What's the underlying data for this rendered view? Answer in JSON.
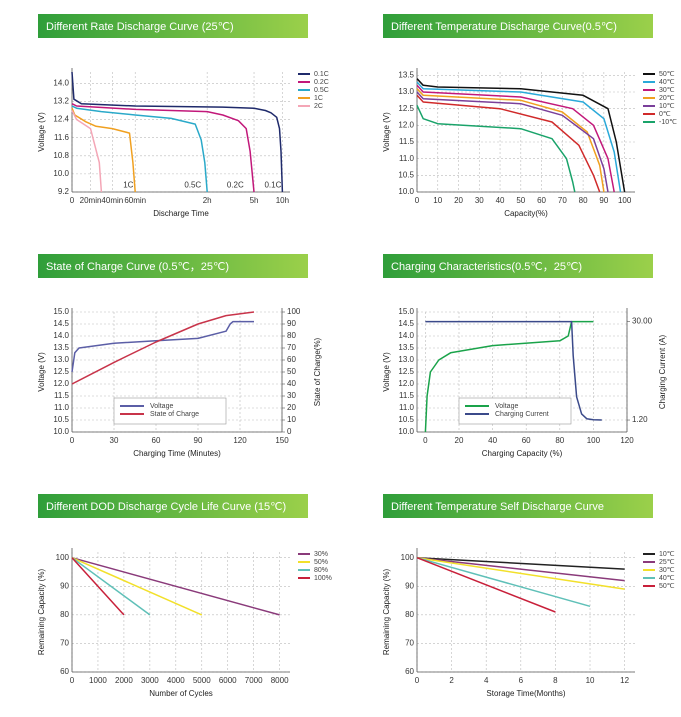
{
  "chart_data": [
    {
      "type": "line",
      "title": "Different Rate Discharge Curve (25℃)",
      "x_label": "Discharge Time",
      "y_label": "Voltage (V)",
      "xlim": [
        0,
        600
      ],
      "xticks": [
        0,
        {
          "value": 20,
          "label": "20min"
        },
        {
          "value": 40,
          "label": "40min"
        },
        {
          "value": 60,
          "label": "60min"
        },
        {
          "value": 120,
          "label": "2h"
        },
        {
          "value": 300,
          "label": "5h"
        },
        {
          "value": 600,
          "label": "10h"
        }
      ],
      "ylim": [
        9.2,
        14.5
      ],
      "yticks": [
        9.2,
        {
          "value": 10,
          "label": "10.0"
        },
        10.8,
        11.6,
        12.4,
        13.2,
        {
          "value": 14,
          "label": "14.0"
        }
      ],
      "grid": true,
      "legend": "upper right",
      "series": [
        {
          "name": "0.1C",
          "color": "#1f2a6b",
          "x": [
            0,
            2,
            10,
            60,
            180,
            300,
            420,
            480,
            540,
            570,
            585,
            600
          ],
          "values": [
            14.5,
            13.3,
            13.1,
            13.0,
            12.95,
            12.9,
            12.8,
            12.7,
            12.5,
            12.0,
            11.0,
            9.2
          ]
        },
        {
          "name": "0.2C",
          "color": "#c2187a",
          "x": [
            0,
            5,
            60,
            120,
            180,
            240,
            270,
            285,
            300
          ],
          "values": [
            13.1,
            13.0,
            12.85,
            12.75,
            12.6,
            12.35,
            12.0,
            11.0,
            9.2
          ]
        },
        {
          "name": "0.5C",
          "color": "#2aa9c9",
          "x": [
            0,
            5,
            30,
            60,
            90,
            110,
            115,
            118,
            120
          ],
          "values": [
            13.0,
            12.9,
            12.75,
            12.6,
            12.45,
            12.2,
            11.5,
            10.5,
            9.2
          ]
        },
        {
          "name": "1C",
          "color": "#f0a020",
          "x": [
            0,
            3,
            15,
            25,
            40,
            55,
            58,
            60
          ],
          "values": [
            12.9,
            12.6,
            12.3,
            12.1,
            12.0,
            11.8,
            10.5,
            9.2
          ]
        },
        {
          "name": "2C",
          "color": "#f4a6b6",
          "x": [
            0,
            5,
            20,
            28,
            30
          ],
          "values": [
            12.8,
            12.4,
            12.0,
            10.5,
            9.2
          ]
        }
      ],
      "annotations": [
        {
          "text": "1C",
          "x": 54,
          "y": 9.5
        },
        {
          "text": "0.5C",
          "x": 108,
          "y": 9.5
        },
        {
          "text": "0.2C",
          "x": 228,
          "y": 9.5
        },
        {
          "text": "0.1C",
          "x": 500,
          "y": 9.5
        }
      ]
    },
    {
      "type": "line",
      "title": "Different Temperature Discharge Curve(0.5℃)",
      "x_label": "Capacity(%)",
      "y_label": "Voltage (V)",
      "xlim": [
        0,
        105
      ],
      "xticks": [
        0,
        10,
        20,
        30,
        40,
        50,
        60,
        70,
        80,
        90,
        100
      ],
      "ylim": [
        10,
        13.6
      ],
      "yticks": [
        {
          "value": 10,
          "label": "10.0"
        },
        10.5,
        {
          "value": 11,
          "label": "11.0"
        },
        11.5,
        {
          "value": 12,
          "label": "12.0"
        },
        12.5,
        {
          "value": 13,
          "label": "13.0"
        },
        13.5
      ],
      "grid": true,
      "legend": "upper right",
      "series": [
        {
          "name": "50℃",
          "color": "#111111",
          "x": [
            0,
            3,
            10,
            50,
            80,
            92,
            96,
            100
          ],
          "values": [
            13.4,
            13.2,
            13.15,
            13.1,
            12.9,
            12.5,
            11.5,
            10.0
          ]
        },
        {
          "name": "40℃",
          "color": "#2aa9d9",
          "x": [
            0,
            3,
            50,
            80,
            90,
            95,
            98
          ],
          "values": [
            13.3,
            13.1,
            13.0,
            12.7,
            12.2,
            11.2,
            10.0
          ]
        },
        {
          "name": "30℃",
          "color": "#c2187a",
          "x": [
            0,
            3,
            50,
            75,
            85,
            92,
            95
          ],
          "values": [
            13.2,
            13.0,
            12.85,
            12.5,
            12.0,
            11.0,
            10.0
          ]
        },
        {
          "name": "20℃",
          "color": "#f0a020",
          "x": [
            0,
            3,
            50,
            70,
            82,
            88,
            90
          ],
          "values": [
            13.1,
            12.9,
            12.75,
            12.4,
            11.8,
            10.8,
            10.0
          ]
        },
        {
          "name": "10℃",
          "color": "#7a3f9a",
          "x": [
            0,
            3,
            50,
            70,
            85,
            90,
            92
          ],
          "values": [
            13.0,
            12.8,
            12.65,
            12.3,
            11.6,
            10.7,
            10.0
          ]
        },
        {
          "name": "0℃",
          "color": "#d02a2a",
          "x": [
            0,
            3,
            40,
            65,
            78,
            85,
            88
          ],
          "values": [
            12.9,
            12.7,
            12.5,
            12.1,
            11.4,
            10.5,
            10.0
          ]
        },
        {
          "name": "-10℃",
          "color": "#1aa36a",
          "x": [
            0,
            3,
            10,
            50,
            65,
            72,
            75,
            76
          ],
          "values": [
            12.6,
            12.2,
            12.05,
            11.9,
            11.6,
            11.0,
            10.3,
            10.0
          ]
        }
      ]
    },
    {
      "type": "line",
      "title": "State of Charge Curve (0.5℃，25℃)",
      "x_label": "Charging Time (Minutes)",
      "y_label": "Voltage (V)",
      "y2_label": "State of Charge(%)",
      "xlim": [
        0,
        150
      ],
      "xticks": [
        0,
        30,
        60,
        90,
        120,
        150
      ],
      "ylim": [
        10,
        15
      ],
      "yticks": [
        {
          "value": 10,
          "label": "10.0"
        },
        10.5,
        {
          "value": 11,
          "label": "11.0"
        },
        11.5,
        {
          "value": 12,
          "label": "12.0"
        },
        12.5,
        {
          "value": 13,
          "label": "13.0"
        },
        13.5,
        {
          "value": 14,
          "label": "14.0"
        },
        14.5,
        {
          "value": 15,
          "label": "15.0"
        }
      ],
      "y2lim": [
        0,
        100
      ],
      "y2ticks": [
        0,
        10,
        20,
        30,
        40,
        50,
        60,
        70,
        80,
        90,
        100
      ],
      "grid": true,
      "legend": "lower left",
      "series": [
        {
          "name": "Voltage",
          "color": "#5b5ea6",
          "x": [
            0,
            2,
            5,
            30,
            60,
            90,
            110,
            113,
            115,
            130
          ],
          "values": [
            12.5,
            13.3,
            13.5,
            13.7,
            13.8,
            13.9,
            14.2,
            14.5,
            14.6,
            14.6
          ]
        },
        {
          "name": "State of Charge",
          "color": "#c8344a",
          "axis": "y2",
          "x": [
            0,
            30,
            60,
            90,
            110,
            130
          ],
          "values": [
            40,
            58,
            75,
            90,
            97,
            100
          ]
        }
      ]
    },
    {
      "type": "line",
      "title": "Charging Characteristics(0.5℃，25℃)",
      "x_label": "Charging Capacity (%)",
      "y_label": "Voltage (V)",
      "y2_label": "Charging Current (A)",
      "xlim": [
        -5,
        120
      ],
      "xticks": [
        0,
        20,
        40,
        60,
        80,
        100,
        120
      ],
      "ylim": [
        10,
        15
      ],
      "yticks": [
        {
          "value": 10,
          "label": "10.0"
        },
        10.5,
        {
          "value": 11,
          "label": "11.0"
        },
        11.5,
        {
          "value": 12,
          "label": "12.0"
        },
        12.5,
        {
          "value": 13,
          "label": "13.0"
        },
        13.5,
        {
          "value": 14,
          "label": "14.0"
        },
        14.5,
        {
          "value": 15,
          "label": "15.0"
        }
      ],
      "y2lim": [
        -2.3,
        32.8
      ],
      "y2ticks": [
        {
          "value": 30,
          "label": "30.00"
        },
        {
          "value": 1.2,
          "label": "1.20"
        }
      ],
      "grid": true,
      "legend": "lower left",
      "series": [
        {
          "name": "Voltage",
          "color": "#1aa34a",
          "x": [
            0,
            1,
            3,
            8,
            15,
            40,
            80,
            85,
            87,
            100
          ],
          "values": [
            10.0,
            11.5,
            12.5,
            13.0,
            13.3,
            13.6,
            13.8,
            14.0,
            14.6,
            14.6
          ]
        },
        {
          "name": "Charging Current",
          "color": "#3b4a8a",
          "axis": "y2",
          "x": [
            0,
            87,
            88,
            90,
            93,
            96,
            100,
            105
          ],
          "values": [
            30,
            30,
            20,
            8,
            3,
            1.6,
            1.3,
            1.2
          ]
        }
      ]
    },
    {
      "type": "line",
      "title": "Different DOD Discharge Cycle Life Curve (15℃)",
      "x_label": "Number of Cycles",
      "y_label": "Remaining Capacity (%)",
      "xlim": [
        0,
        8400
      ],
      "xticks": [
        0,
        1000,
        2000,
        3000,
        4000,
        5000,
        6000,
        7000,
        8000
      ],
      "ylim": [
        60,
        102
      ],
      "yticks": [
        60,
        70,
        80,
        90,
        100
      ],
      "grid": true,
      "legend": "upper right",
      "series": [
        {
          "name": "30%",
          "color": "#8a3a7a",
          "x": [
            0,
            8000
          ],
          "values": [
            100,
            80
          ]
        },
        {
          "name": "50%",
          "color": "#f2e02a",
          "x": [
            0,
            5000
          ],
          "values": [
            100,
            80
          ]
        },
        {
          "name": "80%",
          "color": "#5fc0b8",
          "x": [
            0,
            3000
          ],
          "values": [
            100,
            80
          ]
        },
        {
          "name": "100%",
          "color": "#c8203a",
          "x": [
            0,
            2000
          ],
          "values": [
            100,
            80
          ]
        }
      ]
    },
    {
      "type": "line",
      "title": "Different Temperature Self Discharge Curve",
      "x_label": "Storage Time(Months)",
      "y_label": "Remaining Capacity (%)",
      "xlim": [
        0,
        12.6
      ],
      "xticks": [
        0,
        2,
        4,
        6,
        8,
        10,
        12
      ],
      "ylim": [
        60,
        102
      ],
      "yticks": [
        60,
        70,
        80,
        90,
        100
      ],
      "grid": true,
      "legend": "upper right",
      "series": [
        {
          "name": "10℃",
          "color": "#222222",
          "x": [
            0,
            12
          ],
          "values": [
            100,
            96
          ]
        },
        {
          "name": "25℃",
          "color": "#8a3a7a",
          "x": [
            0,
            12
          ],
          "values": [
            100,
            92
          ]
        },
        {
          "name": "30℃",
          "color": "#f2e02a",
          "x": [
            0,
            12
          ],
          "values": [
            100,
            89
          ]
        },
        {
          "name": "40℃",
          "color": "#5fc0b8",
          "x": [
            0,
            10
          ],
          "values": [
            100,
            83
          ]
        },
        {
          "name": "50℃",
          "color": "#c8203a",
          "x": [
            0,
            8
          ],
          "values": [
            100,
            81
          ]
        }
      ]
    }
  ]
}
